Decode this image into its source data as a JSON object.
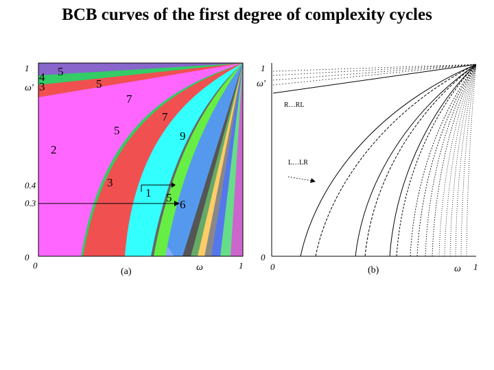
{
  "title": "BCB curves of the first degree of complexity cycles",
  "panel_a": {
    "caption": "(a)",
    "x_axis_label": "ω",
    "y_axis_label": "ω'",
    "x_ticks": [
      "0",
      "1"
    ],
    "y_ticks": [
      "0",
      "0.3",
      "0.4",
      "1"
    ],
    "region_labels": [
      "4",
      "5",
      "3",
      "5",
      "7",
      "2",
      "5",
      "7",
      "9",
      "3",
      "1",
      "5",
      "6"
    ],
    "colors": {
      "region_2": "#ff66ff",
      "region_3": "#f05050",
      "region_4_5_band": "#33cc66",
      "cyan_band": "#33ffff",
      "green_band": "#66ee44"
    }
  },
  "panel_b": {
    "caption": "(b)",
    "x_axis_label": "ω",
    "y_axis_label": "ω'",
    "x_ticks": [
      "0",
      "1"
    ],
    "y_ticks": [
      "0",
      "1"
    ],
    "annotations": [
      "R…RL",
      "L…LR"
    ]
  }
}
